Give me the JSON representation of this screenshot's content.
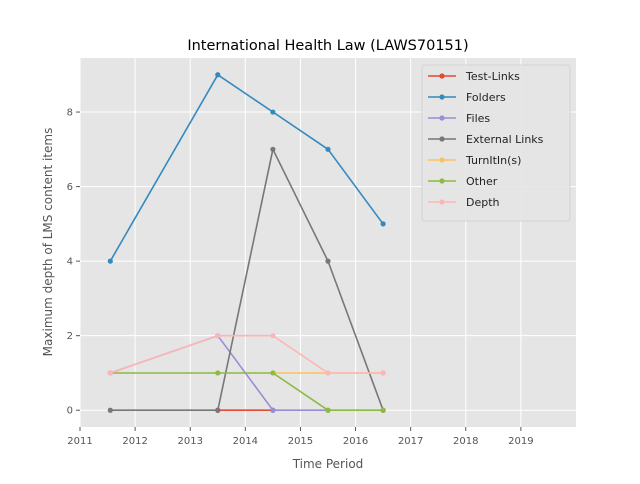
{
  "chart_data": {
    "type": "line",
    "title": "International Health Law (LAWS70151)",
    "xlabel": "Time Period",
    "ylabel": "Maximum depth of LMS content items",
    "xlim": [
      2011,
      2020
    ],
    "ylim": [
      -0.45,
      9.45
    ],
    "x_ticks": [
      2011,
      2012,
      2013,
      2014,
      2015,
      2016,
      2017,
      2018,
      2019
    ],
    "y_ticks": [
      0,
      2,
      4,
      6,
      8
    ],
    "grid": true,
    "legend_position": "top-right",
    "series": [
      {
        "name": "Test-Links",
        "color": "#E24A33",
        "x": [
          2013.5,
          2014.5
        ],
        "y": [
          0,
          0
        ]
      },
      {
        "name": "Folders",
        "color": "#348ABD",
        "x": [
          2011.55,
          2013.5,
          2014.5,
          2015.5,
          2016.5
        ],
        "y": [
          4,
          9,
          8,
          7,
          5
        ]
      },
      {
        "name": "Files",
        "color": "#988ED5",
        "x": [
          2011.55,
          2013.5,
          2014.5,
          2015.5
        ],
        "y": [
          1,
          2,
          0,
          0
        ]
      },
      {
        "name": "External Links",
        "color": "#777777",
        "x": [
          2011.55,
          2013.5,
          2014.5,
          2015.5,
          2016.5
        ],
        "y": [
          0,
          0,
          7,
          4,
          0
        ]
      },
      {
        "name": "TurnItIn(s)",
        "color": "#FBC15E",
        "x": [
          2014.5,
          2015.5,
          2016.5
        ],
        "y": [
          1,
          1,
          1
        ]
      },
      {
        "name": "Other",
        "color": "#8EBA42",
        "x": [
          2011.55,
          2013.5,
          2014.5,
          2015.5,
          2016.5
        ],
        "y": [
          1,
          1,
          1,
          0,
          0
        ]
      },
      {
        "name": "Depth",
        "color": "#FFB5B8",
        "x": [
          2011.55,
          2013.5,
          2014.5,
          2015.5,
          2016.5
        ],
        "y": [
          1,
          2,
          2,
          1,
          1
        ]
      }
    ]
  }
}
